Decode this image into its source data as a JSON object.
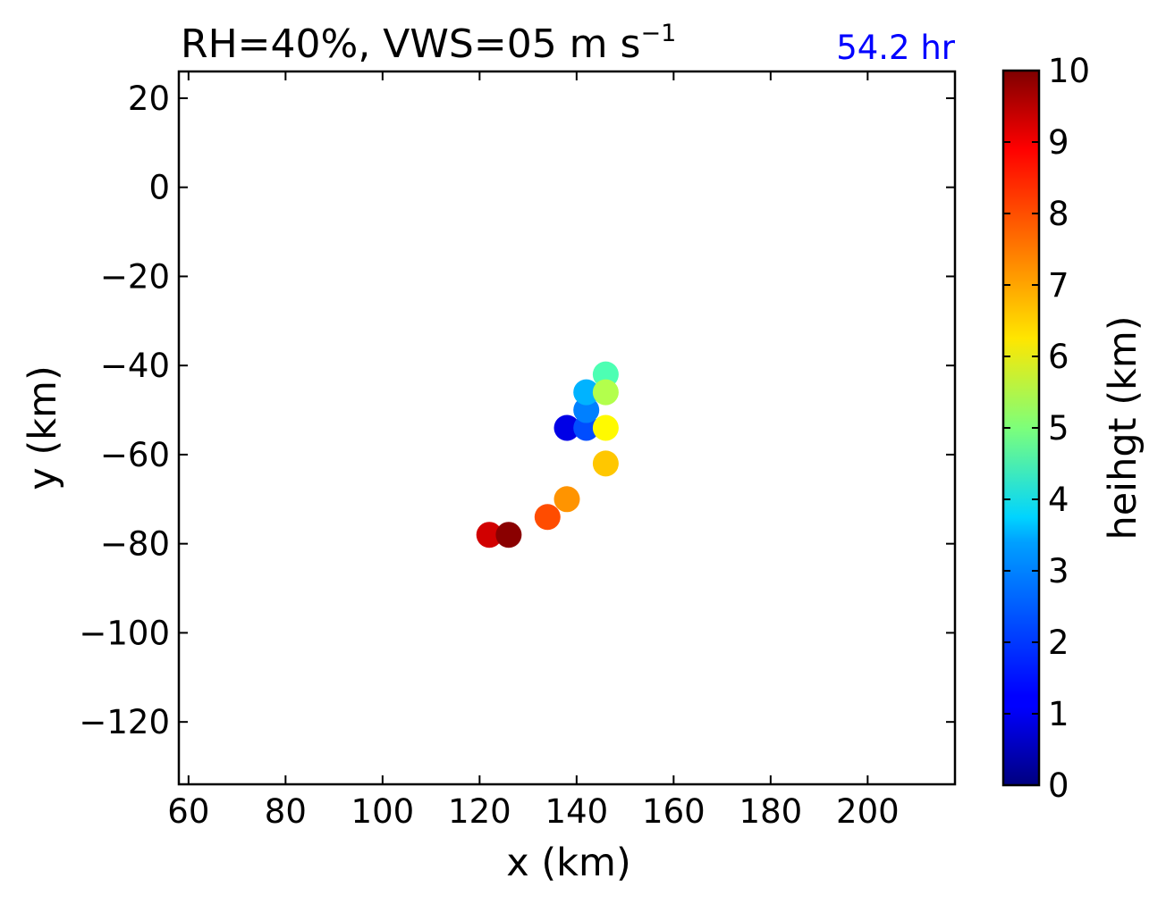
{
  "chart_data": {
    "type": "scatter",
    "title_main": "RH=40%, VWS=05 m s",
    "title_superscript": "−1",
    "time_label": "54.2 hr",
    "time_label_color": "#0000ff",
    "xlabel": "x (km)",
    "ylabel": "y (km)",
    "xlim": [
      58,
      218
    ],
    "ylim": [
      -134,
      26
    ],
    "xticks": [
      60,
      80,
      100,
      120,
      140,
      160,
      180,
      200
    ],
    "xtick_labels": [
      "60",
      "80",
      "100",
      "120",
      "140",
      "160",
      "180",
      "200"
    ],
    "yticks": [
      20,
      0,
      -20,
      -40,
      -60,
      -80,
      -100,
      -120
    ],
    "ytick_labels": [
      "20",
      "0",
      "−20",
      "−40",
      "−60",
      "−80",
      "−100",
      "−120"
    ],
    "grid": false,
    "colorbar": {
      "label": "heihgt (km)",
      "colormap": "jet",
      "range": [
        0,
        10
      ],
      "ticks": [
        0,
        1,
        2,
        3,
        4,
        5,
        6,
        7,
        8,
        9,
        10
      ],
      "tick_labels": [
        "0",
        "1",
        "2",
        "3",
        "4",
        "5",
        "6",
        "7",
        "8",
        "9",
        "10"
      ]
    },
    "points": [
      {
        "x": 138,
        "y": -54,
        "z": 1.0
      },
      {
        "x": 142,
        "y": -54,
        "z": 2.0
      },
      {
        "x": 142,
        "y": -50,
        "z": 2.5
      },
      {
        "x": 142,
        "y": -46,
        "z": 3.0
      },
      {
        "x": 146,
        "y": -42,
        "z": 4.5
      },
      {
        "x": 146,
        "y": -46,
        "z": 5.5
      },
      {
        "x": 146,
        "y": -54,
        "z": 6.3
      },
      {
        "x": 146,
        "y": -62,
        "z": 6.8
      },
      {
        "x": 138,
        "y": -70,
        "z": 7.3
      },
      {
        "x": 134,
        "y": -74,
        "z": 8.0
      },
      {
        "x": 122,
        "y": -78,
        "z": 9.2
      },
      {
        "x": 126,
        "y": -78,
        "z": 9.9
      }
    ]
  }
}
